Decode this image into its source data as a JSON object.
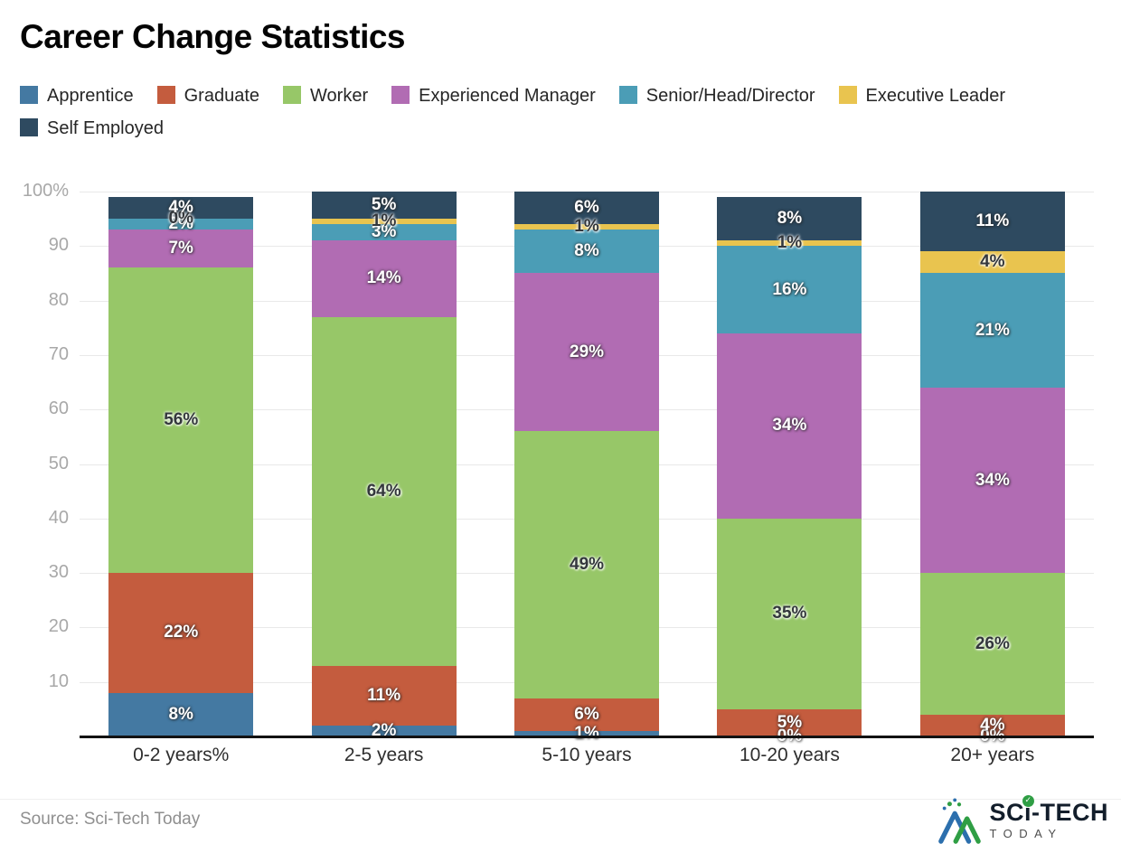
{
  "title": "Career Change Statistics",
  "source": "Source: Sci-Tech Today",
  "logo": {
    "brand_prefix": "SC",
    "brand_i": "ı",
    "check_glyph": "✓",
    "brand_suffix": "-TECH",
    "subtext": "TODAY"
  },
  "axis": {
    "y_ticks": [
      {
        "label": "100%",
        "value": 100
      },
      {
        "label": "90",
        "value": 90
      },
      {
        "label": "80",
        "value": 80
      },
      {
        "label": "70",
        "value": 70
      },
      {
        "label": "60",
        "value": 60
      },
      {
        "label": "50",
        "value": 50
      },
      {
        "label": "40",
        "value": 40
      },
      {
        "label": "30",
        "value": 30
      },
      {
        "label": "20",
        "value": 20
      },
      {
        "label": "10",
        "value": 10
      }
    ]
  },
  "chart_data": {
    "type": "bar",
    "stacked": true,
    "title": "Career Change Statistics",
    "categories": [
      "0-2 years%",
      "2-5 years",
      "5-10 years",
      "10-20 years",
      "20+ years"
    ],
    "series": [
      {
        "name": "Apprentice",
        "color": "#4479a2",
        "values": [
          8,
          2,
          1,
          0,
          0
        ]
      },
      {
        "name": "Graduate",
        "color": "#c45c3e",
        "values": [
          22,
          11,
          6,
          5,
          4
        ]
      },
      {
        "name": "Worker",
        "color": "#97c768",
        "values": [
          56,
          64,
          49,
          35,
          26
        ]
      },
      {
        "name": "Experienced Manager",
        "color": "#b16cb3",
        "values": [
          7,
          14,
          29,
          34,
          34
        ]
      },
      {
        "name": "Senior/Head/Director",
        "color": "#4b9db6",
        "values": [
          2,
          3,
          8,
          16,
          21
        ]
      },
      {
        "name": "Executive Leader",
        "color": "#e9c44f",
        "values": [
          0,
          1,
          1,
          1,
          4
        ]
      },
      {
        "name": "Self Employed",
        "color": "#2e4a60",
        "values": [
          4,
          5,
          6,
          8,
          11
        ]
      }
    ],
    "value_suffix": "%",
    "ylim": [
      0,
      100
    ],
    "grid": true,
    "legend_position": "top"
  }
}
